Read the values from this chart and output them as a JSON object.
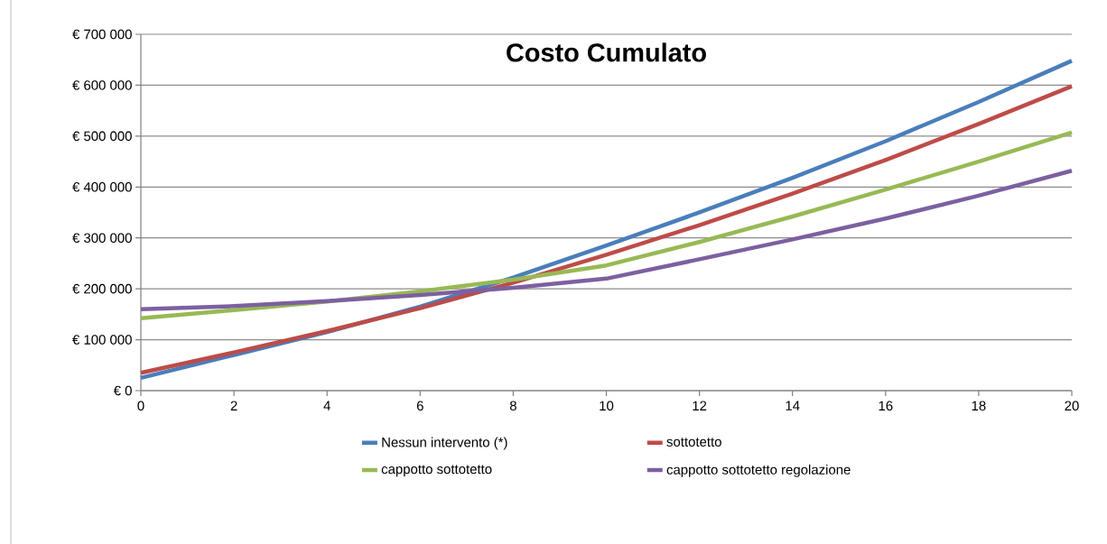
{
  "chart_data": {
    "type": "line",
    "title": "Costo Cumulato",
    "x": [
      0,
      2,
      4,
      6,
      8,
      10,
      12,
      14,
      16,
      18,
      20
    ],
    "series": [
      {
        "name": "Nessun intervento (*)",
        "color": "#4a7ebb",
        "values": [
          25000,
          70000,
          115000,
          165000,
          222000,
          285000,
          350000,
          418000,
          490000,
          567000,
          648000
        ]
      },
      {
        "name": "sottotetto",
        "color": "#be4b48",
        "values": [
          35000,
          75000,
          117000,
          162000,
          212000,
          267000,
          325000,
          387000,
          453000,
          524000,
          598000
        ]
      },
      {
        "name": "cappotto sottotetto",
        "color": "#98b954",
        "values": [
          142000,
          158000,
          175000,
          195000,
          218000,
          246000,
          292000,
          342000,
          395000,
          450000,
          507000
        ]
      },
      {
        "name": "cappotto sottotetto regolazione",
        "color": "#7d60a0",
        "values": [
          160000,
          166000,
          176000,
          188000,
          202000,
          220000,
          258000,
          297000,
          338000,
          383000,
          432000
        ]
      }
    ],
    "xlim": [
      0,
      20
    ],
    "xticks": [
      0,
      2,
      4,
      6,
      8,
      10,
      12,
      14,
      16,
      18,
      20
    ],
    "ylim": [
      0,
      700000
    ],
    "yticks": [
      {
        "value": 0,
        "label": "€ 0"
      },
      {
        "value": 100000,
        "label": "€ 100 000"
      },
      {
        "value": 200000,
        "label": "€ 200 000"
      },
      {
        "value": 300000,
        "label": "€ 300 000"
      },
      {
        "value": 400000,
        "label": "€ 400 000"
      },
      {
        "value": 500000,
        "label": "€ 500 000"
      },
      {
        "value": 600000,
        "label": "€ 600 000"
      },
      {
        "value": 700000,
        "label": "€ 700 000"
      }
    ],
    "grid": "y",
    "legend": "bottom",
    "marker": "none",
    "line_style": "solid"
  }
}
